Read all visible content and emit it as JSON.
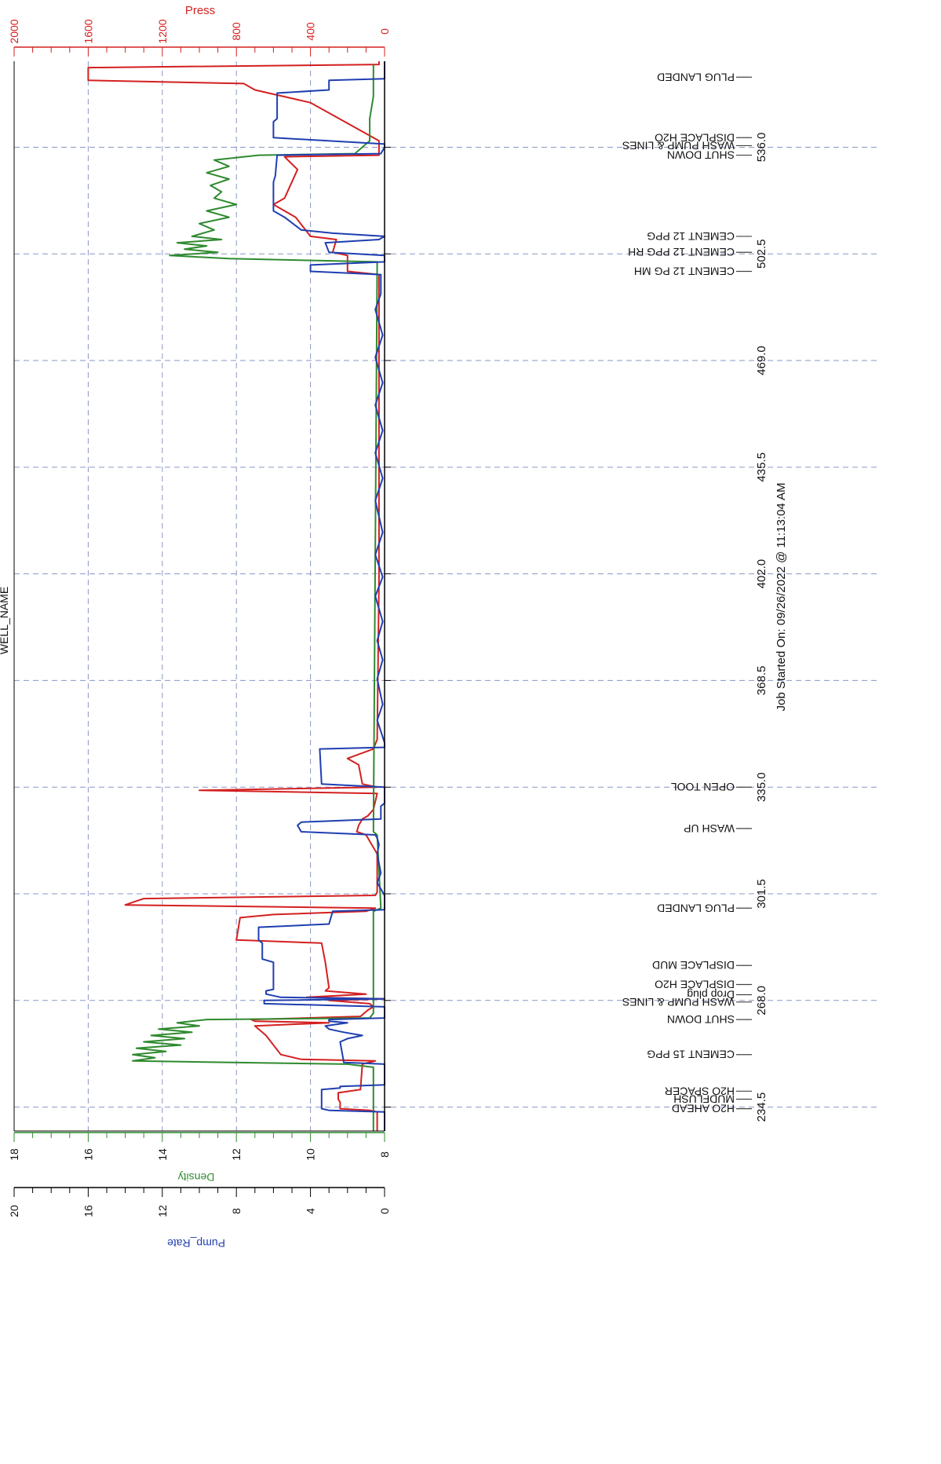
{
  "title_partial": "WELL_NAME",
  "footer": "Job Started On: 09/26/2022 @ 11:13:04 AM",
  "colors": {
    "press": "#d42020",
    "density": "#2f8a2f",
    "pump_rate": "#1f3fb0",
    "axis": "#000000",
    "grid": "#8a96c8",
    "event": "#444444"
  },
  "axes": {
    "press": {
      "label": "Press",
      "ticks": [
        "0",
        "400",
        "800",
        "1200",
        "1600",
        "2000"
      ],
      "range": [
        0,
        2000
      ]
    },
    "density": {
      "label": "Density",
      "ticks": [
        "8",
        "10",
        "12",
        "14",
        "16",
        "18"
      ],
      "range": [
        8,
        18
      ]
    },
    "pump_rate": {
      "label": "Pump_Rate",
      "ticks": [
        "0",
        "4",
        "8",
        "12",
        "16",
        "20"
      ],
      "range": [
        0,
        20
      ]
    },
    "time": {
      "ticks": [
        "234.5",
        "268.0",
        "301.5",
        "335.0",
        "368.5",
        "402.0",
        "435.5",
        "469.0",
        "502.5",
        "536.0"
      ],
      "range": [
        227,
        563
      ]
    }
  },
  "chart_data": {
    "type": "line",
    "title": "WELL_NAME",
    "x_label": "Job Started On: 09/26/2022 @ 11:13:04 AM",
    "x_range": [
      227,
      563
    ],
    "grid": true,
    "events": [
      {
        "t": 234.0,
        "label": "H2O AHEAD"
      },
      {
        "t": 237.0,
        "label": "MUDFLUSH"
      },
      {
        "t": 239.5,
        "label": "H2O SPACER"
      },
      {
        "t": 251.0,
        "label": "CEMENT 15 PPG"
      },
      {
        "t": 262.0,
        "label": "SHUT DOWN"
      },
      {
        "t": 267.5,
        "label": "WASH PUMP & LINES"
      },
      {
        "t": 269.8,
        "label": "Drop plug"
      },
      {
        "t": 273.0,
        "label": "DISPLACE H2O"
      },
      {
        "t": 279.0,
        "label": "DISPLACE MUD"
      },
      {
        "t": 297.0,
        "label": "PLUG LANDED"
      },
      {
        "t": 322.0,
        "label": "WASH UP"
      },
      {
        "t": 335.0,
        "label": "OPEN TOOL"
      },
      {
        "t": 497.0,
        "label": "CEMENT 12 PG MH"
      },
      {
        "t": 503.0,
        "label": "CEMENT 12 PPG RH"
      },
      {
        "t": 508.0,
        "label": "CEMENT 12 PPG"
      },
      {
        "t": 533.5,
        "label": "SHUT DOWN"
      },
      {
        "t": 536.5,
        "label": "WASH PUMP & LINES"
      },
      {
        "t": 539.0,
        "label": "DISPLACE H2O"
      },
      {
        "t": 558.0,
        "label": "PLUG LANDED"
      }
    ],
    "series": [
      {
        "name": "Press",
        "axis": "press",
        "color": "#d42020",
        "points": [
          [
            227,
            40
          ],
          [
            233,
            40
          ],
          [
            233.5,
            80
          ],
          [
            234,
            240
          ],
          [
            236,
            240
          ],
          [
            237,
            250
          ],
          [
            239,
            250
          ],
          [
            240,
            130
          ],
          [
            248,
            120
          ],
          [
            249,
            50
          ],
          [
            249.5,
            450
          ],
          [
            251,
            560
          ],
          [
            257,
            640
          ],
          [
            260,
            700
          ],
          [
            261,
            300
          ],
          [
            261.5,
            700
          ],
          [
            262,
            720
          ],
          [
            263,
            130
          ],
          [
            265,
            90
          ],
          [
            266,
            60
          ],
          [
            267,
            80
          ],
          [
            268,
            300
          ],
          [
            268.5,
            0
          ],
          [
            269,
            420
          ],
          [
            270,
            100
          ],
          [
            271,
            320
          ],
          [
            272,
            300
          ],
          [
            280,
            320
          ],
          [
            286,
            340
          ],
          [
            287,
            800
          ],
          [
            294,
            780
          ],
          [
            295,
            600
          ],
          [
            296,
            100
          ],
          [
            297,
            50
          ],
          [
            298,
            1400
          ],
          [
            299,
            1350
          ],
          [
            300,
            1300
          ],
          [
            301,
            50
          ],
          [
            302,
            40
          ],
          [
            314,
            40
          ],
          [
            320,
            100
          ],
          [
            321,
            150
          ],
          [
            323,
            140
          ],
          [
            325,
            120
          ],
          [
            326,
            90
          ],
          [
            328,
            60
          ],
          [
            333,
            40
          ],
          [
            334,
            1000
          ],
          [
            335,
            40
          ],
          [
            335.5,
            80
          ],
          [
            336,
            120
          ],
          [
            342,
            140
          ],
          [
            344,
            200
          ],
          [
            347,
            60
          ],
          [
            350,
            40
          ],
          [
            400,
            30
          ],
          [
            496,
            30
          ],
          [
            497,
            200
          ],
          [
            502,
            200
          ],
          [
            503,
            280
          ],
          [
            507,
            260
          ],
          [
            508,
            400
          ],
          [
            514,
            480
          ],
          [
            518,
            600
          ],
          [
            520,
            540
          ],
          [
            529,
            470
          ],
          [
            533,
            540
          ],
          [
            533.5,
            30
          ],
          [
            537,
            30
          ],
          [
            538,
            30
          ],
          [
            550,
            400
          ],
          [
            554,
            700
          ],
          [
            556,
            760
          ],
          [
            557,
            1600
          ],
          [
            561,
            1600
          ],
          [
            562,
            30
          ],
          [
            563,
            30
          ]
        ]
      },
      {
        "name": "Density",
        "axis": "density",
        "color": "#2f8a2f",
        "points": [
          [
            227,
            8.3
          ],
          [
            247,
            8.3
          ],
          [
            248,
            9
          ],
          [
            249,
            14.8
          ],
          [
            250,
            14.2
          ],
          [
            251,
            14.8
          ],
          [
            252,
            13.9
          ],
          [
            253,
            14.7
          ],
          [
            254,
            13.5
          ],
          [
            255,
            14.5
          ],
          [
            256,
            13.4
          ],
          [
            257,
            14.3
          ],
          [
            258,
            13.2
          ],
          [
            259,
            14.1
          ],
          [
            260,
            13.0
          ],
          [
            261,
            13.6
          ],
          [
            262,
            12.8
          ],
          [
            262.5,
            8.4
          ],
          [
            264,
            8.3
          ],
          [
            296,
            8.3
          ],
          [
            297,
            8.1
          ],
          [
            320,
            8.2
          ],
          [
            321,
            8.3
          ],
          [
            500,
            8.2
          ],
          [
            501,
            12.2
          ],
          [
            502,
            13.8
          ],
          [
            503,
            12.5
          ],
          [
            504,
            13.4
          ],
          [
            505,
            12.8
          ],
          [
            506,
            13.6
          ],
          [
            507,
            12.4
          ],
          [
            508,
            13.2
          ],
          [
            510,
            12.6
          ],
          [
            512,
            13.0
          ],
          [
            514,
            12.2
          ],
          [
            516,
            12.8
          ],
          [
            518,
            12.0
          ],
          [
            520,
            12.6
          ],
          [
            522,
            12.4
          ],
          [
            524,
            12.7
          ],
          [
            526,
            12.2
          ],
          [
            528,
            12.8
          ],
          [
            530,
            12.2
          ],
          [
            532,
            12.6
          ],
          [
            533.5,
            11.4
          ],
          [
            534,
            8.8
          ],
          [
            536,
            8.6
          ],
          [
            538,
            8.4
          ],
          [
            545,
            8.4
          ],
          [
            552,
            8.3
          ],
          [
            562,
            8.3
          ]
        ]
      },
      {
        "name": "Pump_Rate",
        "axis": "pump_rate",
        "color": "#1f3fb0",
        "points": [
          [
            227,
            0
          ],
          [
            233,
            0
          ],
          [
            233.5,
            3
          ],
          [
            234,
            3.4
          ],
          [
            240,
            3.4
          ],
          [
            240.5,
            2.4
          ],
          [
            241,
            2.4
          ],
          [
            241.5,
            0
          ],
          [
            248,
            0
          ],
          [
            248.5,
            2.2
          ],
          [
            255,
            2.4
          ],
          [
            256,
            2.0
          ],
          [
            257,
            1.2
          ],
          [
            258,
            2.2
          ],
          [
            259,
            3.0
          ],
          [
            260,
            3.2
          ],
          [
            261,
            2.0
          ],
          [
            261.5,
            3.0
          ],
          [
            262,
            3.0
          ],
          [
            262.5,
            0
          ],
          [
            266,
            0
          ],
          [
            267,
            6.5
          ],
          [
            268,
            6.5
          ],
          [
            268.5,
            0
          ],
          [
            269,
            5.6
          ],
          [
            270,
            6.4
          ],
          [
            271,
            6.4
          ],
          [
            271.5,
            6.0
          ],
          [
            280,
            6.0
          ],
          [
            281,
            6.6
          ],
          [
            286,
            6.6
          ],
          [
            287,
            6.8
          ],
          [
            291,
            6.8
          ],
          [
            292,
            3.0
          ],
          [
            296,
            2.8
          ],
          [
            296.5,
            0
          ],
          [
            297,
            0
          ],
          [
            301,
            0
          ],
          [
            305,
            0.4
          ],
          [
            308,
            0.2
          ],
          [
            314,
            0.4
          ],
          [
            317,
            0.3
          ],
          [
            319,
            0.4
          ],
          [
            320,
            0.5
          ],
          [
            321,
            4.5
          ],
          [
            323,
            4.7
          ],
          [
            324,
            4.5
          ],
          [
            325,
            0.2
          ],
          [
            329,
            0.2
          ],
          [
            330,
            0
          ],
          [
            335,
            0
          ],
          [
            336,
            3.4
          ],
          [
            347,
            3.5
          ],
          [
            347.5,
            0
          ],
          [
            349,
            0
          ],
          [
            356,
            0.4
          ],
          [
            361,
            0.1
          ],
          [
            369,
            0.4
          ],
          [
            375,
            0.1
          ],
          [
            381,
            0.4
          ],
          [
            387,
            0.1
          ],
          [
            395,
            0.5
          ],
          [
            401,
            0.1
          ],
          [
            408,
            0.5
          ],
          [
            415,
            0.1
          ],
          [
            425,
            0.5
          ],
          [
            432,
            0.1
          ],
          [
            440,
            0.5
          ],
          [
            447,
            0.1
          ],
          [
            455,
            0.5
          ],
          [
            462,
            0.1
          ],
          [
            470,
            0.5
          ],
          [
            477,
            0.1
          ],
          [
            485,
            0.5
          ],
          [
            490,
            0.2
          ],
          [
            496,
            0.2
          ],
          [
            497,
            4.0
          ],
          [
            499,
            4.0
          ],
          [
            500,
            0
          ],
          [
            502,
            0
          ],
          [
            503,
            3.0
          ],
          [
            506,
            3.2
          ],
          [
            507,
            0.3
          ],
          [
            508,
            0
          ],
          [
            509,
            2.8
          ],
          [
            510,
            4.5
          ],
          [
            514,
            5.4
          ],
          [
            516,
            6.0
          ],
          [
            525,
            6.0
          ],
          [
            527,
            5.9
          ],
          [
            533.5,
            5.8
          ],
          [
            534,
            0.2
          ],
          [
            536,
            0
          ],
          [
            537,
            0
          ],
          [
            539,
            6.0
          ],
          [
            544,
            6.0
          ],
          [
            545,
            5.8
          ],
          [
            553,
            5.8
          ],
          [
            554,
            3.0
          ],
          [
            557,
            3.0
          ],
          [
            557.5,
            0
          ],
          [
            563,
            0
          ]
        ]
      }
    ]
  }
}
